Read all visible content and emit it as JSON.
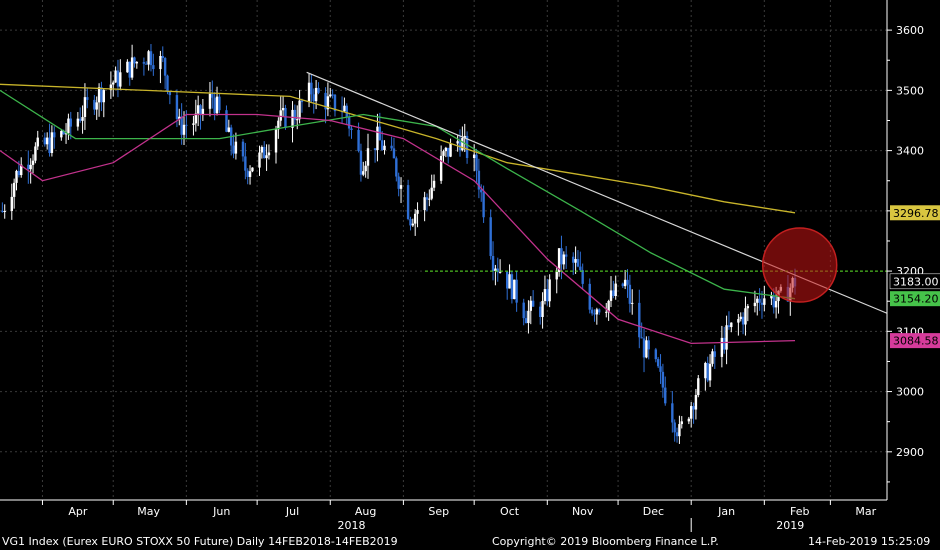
{
  "chart_data": {
    "type": "candlestick",
    "title": "",
    "xlabel": "",
    "ylabel": "",
    "ylim": [
      2820,
      3650
    ],
    "y_ticks": [
      2900,
      3000,
      3100,
      3200,
      3300,
      3400,
      3500,
      3600
    ],
    "x_tick_labels": [
      "Apr",
      "May",
      "Jun",
      "Jul",
      "Aug",
      "Sep",
      "Oct",
      "Nov",
      "Dec",
      "Jan",
      "Feb",
      "Mar"
    ],
    "x_year_labels": [
      "2018",
      "2019"
    ],
    "x_range": [
      "2018-03-14",
      "2019-03-25"
    ],
    "close_series": [
      [
        "2018-03-15",
        3300
      ],
      [
        "2018-03-22",
        3370
      ],
      [
        "2018-03-29",
        3400
      ],
      [
        "2018-04-05",
        3415
      ],
      [
        "2018-04-12",
        3435
      ],
      [
        "2018-04-19",
        3470
      ],
      [
        "2018-04-26",
        3500
      ],
      [
        "2018-05-03",
        3520
      ],
      [
        "2018-05-10",
        3545
      ],
      [
        "2018-05-16",
        3560
      ],
      [
        "2018-05-22",
        3545
      ],
      [
        "2018-05-29",
        3440
      ],
      [
        "2018-06-05",
        3450
      ],
      [
        "2018-06-12",
        3490
      ],
      [
        "2018-06-19",
        3420
      ],
      [
        "2018-06-26",
        3370
      ],
      [
        "2018-07-03",
        3390
      ],
      [
        "2018-07-10",
        3450
      ],
      [
        "2018-07-17",
        3460
      ],
      [
        "2018-07-24",
        3500
      ],
      [
        "2018-07-31",
        3480
      ],
      [
        "2018-08-07",
        3470
      ],
      [
        "2018-08-14",
        3380
      ],
      [
        "2018-08-21",
        3420
      ],
      [
        "2018-08-28",
        3380
      ],
      [
        "2018-09-04",
        3290
      ],
      [
        "2018-09-11",
        3320
      ],
      [
        "2018-09-18",
        3390
      ],
      [
        "2018-09-25",
        3420
      ],
      [
        "2018-10-02",
        3370
      ],
      [
        "2018-10-09",
        3220
      ],
      [
        "2018-10-16",
        3180
      ],
      [
        "2018-10-23",
        3130
      ],
      [
        "2018-10-30",
        3140
      ],
      [
        "2018-11-06",
        3220
      ],
      [
        "2018-11-13",
        3210
      ],
      [
        "2018-11-20",
        3140
      ],
      [
        "2018-11-27",
        3150
      ],
      [
        "2018-12-04",
        3180
      ],
      [
        "2018-12-11",
        3080
      ],
      [
        "2018-12-18",
        3030
      ],
      [
        "2018-12-27",
        2930
      ],
      [
        "2019-01-03",
        3000
      ],
      [
        "2019-01-10",
        3050
      ],
      [
        "2019-01-17",
        3100
      ],
      [
        "2019-01-24",
        3130
      ],
      [
        "2019-01-31",
        3160
      ],
      [
        "2019-02-07",
        3150
      ],
      [
        "2019-02-14",
        3183
      ]
    ],
    "series": [
      {
        "name": "",
        "color": "#c8b42a",
        "values": [
          [
            "2018-03-14",
            3510
          ],
          [
            "2018-05-15",
            3500
          ],
          [
            "2018-07-15",
            3490
          ],
          [
            "2018-09-15",
            3420
          ],
          [
            "2018-10-15",
            3380
          ],
          [
            "2018-11-15",
            3360
          ],
          [
            "2018-12-15",
            3340
          ],
          [
            "2019-01-15",
            3315
          ],
          [
            "2019-02-14",
            3296.78
          ]
        ]
      },
      {
        "name": "",
        "color": "#3cb44b",
        "values": [
          [
            "2018-03-14",
            3500
          ],
          [
            "2018-04-15",
            3420
          ],
          [
            "2018-05-15",
            3420
          ],
          [
            "2018-06-15",
            3420
          ],
          [
            "2018-07-15",
            3440
          ],
          [
            "2018-08-15",
            3460
          ],
          [
            "2018-09-15",
            3440
          ],
          [
            "2018-10-15",
            3370
          ],
          [
            "2018-11-15",
            3300
          ],
          [
            "2018-12-15",
            3230
          ],
          [
            "2019-01-15",
            3170
          ],
          [
            "2019-02-14",
            3154.2
          ]
        ]
      },
      {
        "name": "",
        "color": "#c2328c",
        "values": [
          [
            "2018-03-14",
            3400
          ],
          [
            "2018-04-01",
            3350
          ],
          [
            "2018-05-01",
            3380
          ],
          [
            "2018-06-01",
            3460
          ],
          [
            "2018-07-01",
            3460
          ],
          [
            "2018-08-01",
            3450
          ],
          [
            "2018-09-01",
            3420
          ],
          [
            "2018-10-01",
            3350
          ],
          [
            "2018-11-01",
            3220
          ],
          [
            "2018-12-01",
            3120
          ],
          [
            "2019-01-01",
            3080
          ],
          [
            "2019-02-14",
            3084.58
          ]
        ]
      }
    ],
    "annotations": {
      "trendline": [
        [
          "2018-07-22",
          3530
        ],
        [
          "2019-03-25",
          3130
        ]
      ],
      "horizontal_level": 3200,
      "circle_center": [
        "2019-02-16",
        3210
      ],
      "last_price_labels": [
        {
          "text": "3296.78",
          "value": 3296.78,
          "bg": "#d9c640",
          "fg": "#000"
        },
        {
          "text": "3183.00",
          "value": 3183.0,
          "bg": "#000",
          "fg": "#fff"
        },
        {
          "text": "3154.20",
          "value": 3154.2,
          "bg": "#46c34a",
          "fg": "#000"
        },
        {
          "text": "3084.58",
          "value": 3084.58,
          "bg": "#d63b9b",
          "fg": "#000"
        }
      ]
    }
  },
  "footer": {
    "left": "VG1 Index (Eurex EURO STOXX 50 Future)  Daily 14FEB2018-14FEB2019",
    "center": "Copyright© 2019 Bloomberg Finance L.P.",
    "right": "14-Feb-2019 15:25:09"
  }
}
